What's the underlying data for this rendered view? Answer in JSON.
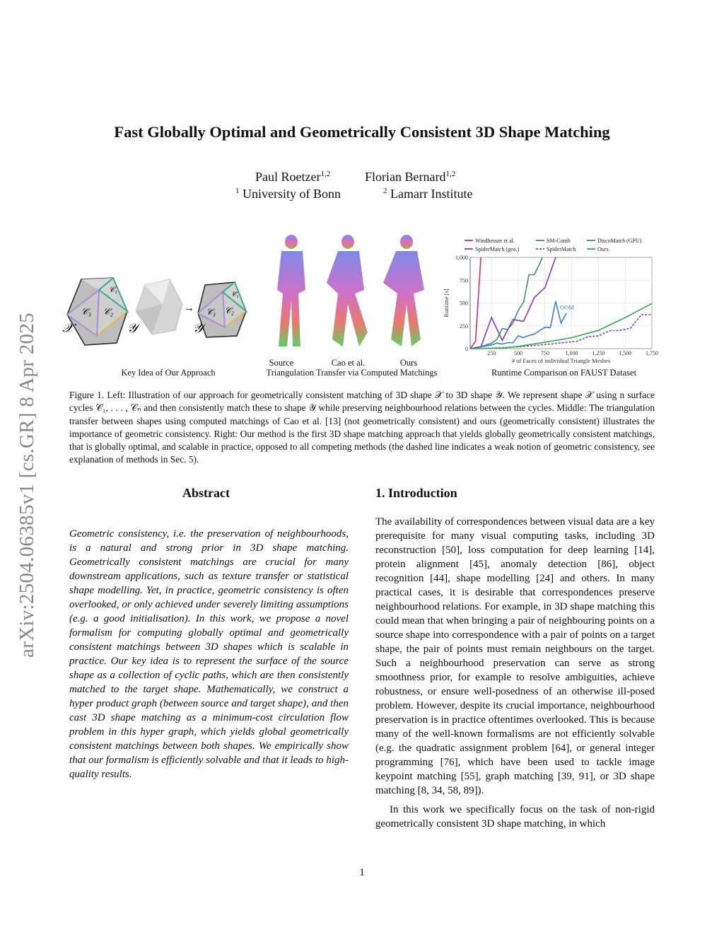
{
  "arxiv_stamp": "arXiv:2504.06385v1  [cs.GR]  8 Apr 2025",
  "title": "Fast Globally Optimal and Geometrically Consistent 3D Shape Matching",
  "authors": [
    {
      "name": "Paul Roetzer",
      "sup": "1,2"
    },
    {
      "name": "Florian Bernard",
      "sup": "1,2"
    }
  ],
  "affiliations": [
    {
      "sup": "1",
      "name": "University of Bonn"
    },
    {
      "sup": "2",
      "name": "Lamarr Institute"
    }
  ],
  "figure": {
    "left_label": "Key Idea of Our Approach",
    "left_symbols": {
      "x": "𝒳",
      "y": "𝒴",
      "c1": "𝒞₁",
      "c2": "𝒞₂",
      "c3": "𝒞₃",
      "arrow": "→"
    },
    "middle_sub": [
      "Source",
      "Cao et al.",
      "Ours"
    ],
    "middle_label": "Triangulation Transfer via Computed Matchings",
    "right_label": "Runtime Comparison on FAUST Dataset",
    "caption": "Figure 1.  Left: Illustration of our approach for geometrically consistent matching of 3D shape 𝒳 to 3D shape 𝒴. We represent shape 𝒳 using n surface cycles 𝒞₁, . . . , 𝒞ₙ and then consistently match these to shape 𝒴 while preserving neighbourhood relations between the cycles. Middle: The triangulation transfer between shapes using computed matchings of Cao et al. [13] (not geometrically consistent) and ours (geometrically consistent) illustrates the importance of geometric consistency. Right: Our method is the first 3D shape matching approach that yields globally geometrically consistent matchings, that is globally optimal, and scalable in practice, opposed to all competing methods (the dashed line indicates a weak notion of geometric consistency, see explanation of methods in Sec. 5)."
  },
  "chart_data": {
    "type": "line",
    "title": "Runtime Comparison on FAUST Dataset",
    "xlabel": "# of Faces of individual Triangle Meshes",
    "ylabel": "Runtime [s]",
    "xlim": [
      50,
      1750
    ],
    "ylim": [
      0,
      1000
    ],
    "xticks": [
      250,
      500,
      750,
      1000,
      1250,
      1500,
      1750
    ],
    "xtick_labels": [
      "250",
      "500",
      "750",
      "1,000",
      "1,250",
      "1,500",
      "1,750"
    ],
    "yticks": [
      0,
      250,
      500,
      750,
      1000
    ],
    "ytick_labels": [
      "0",
      "250",
      "500",
      "750",
      "1,000"
    ],
    "grid": true,
    "legend_position": "top",
    "annotation": {
      "text": "OOM",
      "x": 870,
      "y": 430,
      "color": "#3a7fd5"
    },
    "series": [
      {
        "name": "Windheuser et al.",
        "color": "#e0286e",
        "dashed": false,
        "x": [
          50,
          100,
          150
        ],
        "y": [
          0,
          80,
          1000
        ]
      },
      {
        "name": "SM-Comb",
        "color": "#3f8f6a",
        "dashed": false,
        "x": [
          50,
          150,
          250,
          300,
          350,
          400,
          450,
          500,
          550,
          600,
          650,
          700,
          725
        ],
        "y": [
          0,
          20,
          60,
          100,
          220,
          210,
          280,
          420,
          510,
          810,
          810,
          930,
          1000
        ]
      },
      {
        "name": "DiscoMatch (GPU)",
        "color": "#3a7fd5",
        "dashed": false,
        "x": [
          50,
          150,
          250,
          300,
          350,
          400,
          450,
          500,
          550,
          600,
          650,
          750,
          800,
          850,
          900,
          950
        ],
        "y": [
          0,
          20,
          40,
          60,
          50,
          65,
          65,
          140,
          120,
          145,
          160,
          235,
          230,
          520,
          280,
          390
        ]
      },
      {
        "name": "SpiderMatch (geo.)",
        "color": "#7b3fc9",
        "dashed": false,
        "x": [
          50,
          150,
          250,
          350,
          450,
          550,
          650,
          750,
          850
        ],
        "y": [
          0,
          20,
          340,
          90,
          320,
          300,
          560,
          670,
          1000
        ]
      },
      {
        "name": "SpiderMatch",
        "color": "#7b3fc9",
        "dashed": true,
        "x": [
          50,
          250,
          500,
          750,
          1000,
          1050,
          1150,
          1250,
          1350,
          1450,
          1550,
          1650,
          1750
        ],
        "y": [
          0,
          5,
          20,
          45,
          75,
          80,
          130,
          140,
          195,
          200,
          225,
          370,
          375
        ]
      },
      {
        "name": "Ours",
        "color": "#2fae4a",
        "dashed": false,
        "x": [
          50,
          350,
          500,
          750,
          1000,
          1250,
          1500,
          1750
        ],
        "y": [
          0,
          5,
          25,
          70,
          120,
          200,
          340,
          495
        ]
      }
    ]
  },
  "abstract": {
    "heading": "Abstract",
    "text": "Geometric consistency, i.e. the preservation of neighbourhoods, is a natural and strong prior in 3D shape matching. Geometrically consistent matchings are crucial for many downstream applications, such as texture transfer or statistical shape modelling. Yet, in practice, geometric consistency is often overlooked, or only achieved under severely limiting assumptions (e.g. a good initialisation). In this work, we propose a novel formalism for computing globally optimal and geometrically consistent matchings between 3D shapes which is scalable in practice. Our key idea is to represent the surface of the source shape as a collection of cyclic paths, which are then consistently matched to the target shape. Mathematically, we construct a hyper product graph (between source and target shape), and then cast 3D shape matching as a minimum-cost circulation flow problem in this hyper graph, which yields global geometrically consistent matchings between both shapes. We empirically show that our formalism is efficiently solvable and that it leads to high-quality results."
  },
  "introduction": {
    "heading": "1. Introduction",
    "paragraphs": [
      "The availability of correspondences between visual data are a key prerequisite for many visual computing tasks, including 3D reconstruction [50], loss computation for deep learning [14], protein alignment [45], anomaly detection [86], object recognition [44], shape modelling [24] and others. In many practical cases, it is desirable that correspondences preserve neighbourhood relations. For example, in 3D shape matching this could mean that when bringing a pair of neighbouring points on a source shape into correspondence with a pair of points on a target shape, the pair of points must remain neighbours on the target. Such a neighbourhood preservation can serve as strong smoothness prior, for example to resolve ambiguities, achieve robustness, or ensure well-posedness of an otherwise ill-posed problem. However, despite its crucial importance, neighbourhood preservation is in practice oftentimes overlooked. This is because many of the well-known formalisms are not efficiently solvable (e.g. the quadratic assignment problem [64], or general integer programming [76], which have been used to tackle image keypoint matching [55], graph matching [39, 91], or 3D shape matching [8, 34, 58, 89]).",
      "In this work we specifically focus on the task of non-rigid geometrically consistent 3D shape matching, in which"
    ]
  },
  "page_number": "1"
}
